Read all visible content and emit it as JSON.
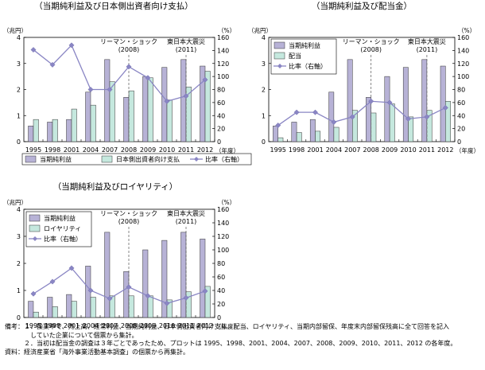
{
  "chart_data": [
    {
      "type": "bar",
      "title": "（当期純利益及び日本側出資者向け支払）",
      "categories": [
        "1995",
        "1998",
        "2001",
        "2004",
        "2007",
        "2008",
        "2009",
        "2010",
        "2011",
        "2012"
      ],
      "x_unit": "（年度）",
      "y_left_unit": "（兆円）",
      "y_right_unit": "（%）",
      "ylim": [
        0,
        4
      ],
      "y_ticks": [
        0,
        1,
        2,
        3,
        4
      ],
      "y2lim": [
        0,
        160
      ],
      "y2_ticks": [
        0,
        20,
        40,
        60,
        80,
        100,
        120,
        140,
        160
      ],
      "series": [
        {
          "name": "当期純利益",
          "kind": "bar",
          "color": "#b7b2d6",
          "values": [
            0.6,
            0.75,
            0.85,
            1.9,
            3.15,
            1.7,
            2.5,
            2.85,
            3.15,
            2.9
          ]
        },
        {
          "name": "日本側出資者向け支払",
          "kind": "bar",
          "color": "#c5e8de",
          "values": [
            0.85,
            0.85,
            1.25,
            1.4,
            2.3,
            1.95,
            2.45,
            1.6,
            2.1,
            2.7
          ]
        },
        {
          "name": "比率（右軸）",
          "kind": "line",
          "axis": "right",
          "color": "#8a86c4",
          "values": [
            141,
            118,
            148,
            80,
            80,
            115,
            98,
            62,
            70,
            95
          ]
        }
      ],
      "annotations": [
        {
          "text": "リーマン・ショック",
          "sub": "(2008)",
          "at": "2008"
        },
        {
          "text": "東日本大震災",
          "sub": "(2011)",
          "at": "2011"
        }
      ],
      "legend": "bottom"
    },
    {
      "type": "bar",
      "title": "（当期純利益及び配当金）",
      "categories": [
        "1995",
        "1998",
        "2001",
        "2004",
        "2007",
        "2008",
        "2009",
        "2010",
        "2011",
        "2012"
      ],
      "x_unit": "（年度）",
      "y_left_unit": "（兆円）",
      "y_right_unit": "（%）",
      "ylim": [
        0,
        4
      ],
      "y_ticks": [
        0,
        1,
        2,
        3,
        4
      ],
      "y2lim": [
        0,
        160
      ],
      "y2_ticks": [
        0,
        20,
        40,
        60,
        80,
        100,
        120,
        140,
        160
      ],
      "series": [
        {
          "name": "当期純利益",
          "kind": "bar",
          "color": "#b7b2d6",
          "values": [
            0.6,
            0.75,
            0.85,
            1.9,
            3.15,
            1.7,
            2.5,
            2.85,
            3.15,
            2.9
          ]
        },
        {
          "name": "配当",
          "kind": "bar",
          "color": "#c5e8de",
          "values": [
            0.15,
            0.35,
            0.4,
            0.55,
            1.2,
            1.1,
            1.45,
            0.95,
            1.2,
            1.55
          ]
        },
        {
          "name": "比率（右軸）",
          "kind": "line",
          "axis": "right",
          "color": "#8a86c4",
          "values": [
            25,
            45,
            45,
            30,
            38,
            62,
            60,
            35,
            38,
            52
          ]
        }
      ],
      "annotations": [
        {
          "text": "リーマン・ショック",
          "sub": "(2008)",
          "at": "2008"
        },
        {
          "text": "東日本大震災",
          "sub": "(2011)",
          "at": "2011"
        }
      ],
      "legend": "top-left"
    },
    {
      "type": "bar",
      "title": "（当期純利益及びロイヤリティ）",
      "categories": [
        "1995",
        "1998",
        "2001",
        "2004",
        "2007",
        "2008",
        "2009",
        "2010",
        "2011",
        "2012"
      ],
      "x_unit": "（年度）",
      "y_left_unit": "（兆円）",
      "y_right_unit": "（%）",
      "ylim": [
        0,
        4
      ],
      "y_ticks": [
        0,
        1,
        2,
        3,
        4
      ],
      "y2lim": [
        0,
        160
      ],
      "y2_ticks": [
        0,
        20,
        40,
        60,
        80,
        100,
        120,
        140,
        160
      ],
      "series": [
        {
          "name": "当期純利益",
          "kind": "bar",
          "color": "#b7b2d6",
          "values": [
            0.6,
            0.75,
            0.85,
            1.9,
            3.15,
            1.7,
            2.5,
            2.85,
            3.15,
            2.9
          ]
        },
        {
          "name": "ロイヤリティ",
          "kind": "bar",
          "color": "#c5e8de",
          "values": [
            0.2,
            0.4,
            0.6,
            0.75,
            0.8,
            0.8,
            0.8,
            0.65,
            0.95,
            1.15
          ]
        },
        {
          "name": "比率（右軸）",
          "kind": "line",
          "axis": "right",
          "color": "#8a86c4",
          "values": [
            35,
            53,
            73,
            40,
            28,
            45,
            32,
            21,
            29,
            39
          ]
        }
      ],
      "annotations": [
        {
          "text": "リーマン・ショック",
          "sub": "(2008)",
          "at": "2008"
        },
        {
          "text": "東日本大震災",
          "sub": "(2011)",
          "at": "2011"
        }
      ],
      "legend": "top-left"
    }
  ],
  "notes": [
    "備考：１．操業中で、売上高、経常利益、当期純利益、日本側出資者向け支払、配当、ロイヤリティ、当期内部留保、年度末内部留保残高に全て回答を記入",
    "　　　　していた企業について個票から集計。",
    "　　　２．当初は配当金の調査は３年ごとであったため、プロットは 1995、1998、2001、2004、2007、2008、2009、2010、2011、2012 の各年度。",
    "資料：経済産業省「海外事業活動基本調査」の個票から再集計。"
  ]
}
